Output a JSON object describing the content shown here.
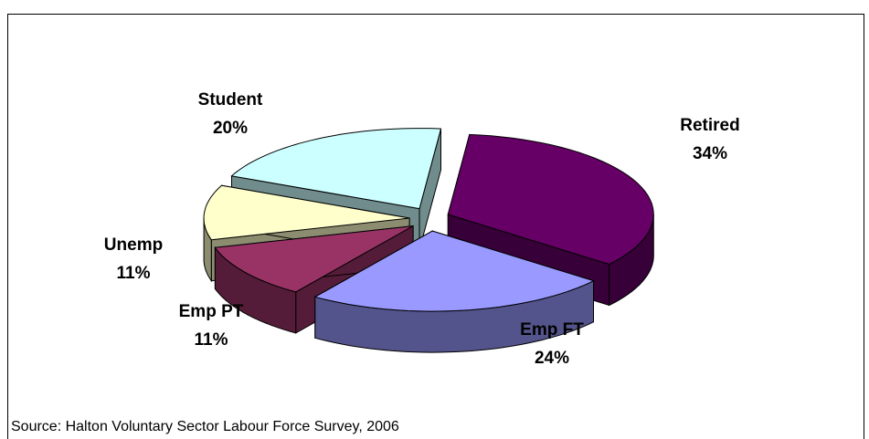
{
  "chart_data": {
    "type": "pie3d",
    "categories": [
      "Retired",
      "Emp FT",
      "Emp PT",
      "Unemp",
      "Student"
    ],
    "values": [
      34,
      24,
      11,
      11,
      20
    ],
    "value_labels": [
      "34%",
      "24%",
      "11%",
      "11%",
      "20%"
    ],
    "colors": [
      "#660066",
      "#9999ff",
      "#993366",
      "#ffffcc",
      "#ccffff"
    ],
    "source": "Source: Halton Voluntary Sector Labour Force Survey, 2006"
  }
}
